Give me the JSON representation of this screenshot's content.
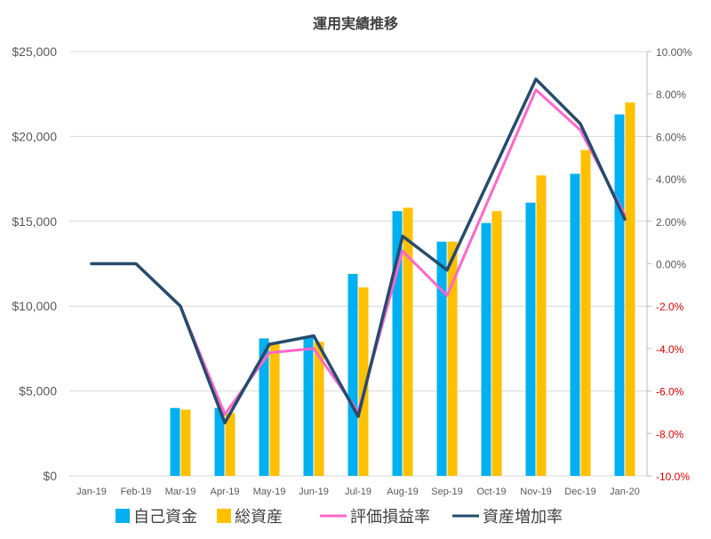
{
  "chart_data": {
    "type": "bar",
    "title": "運用実績推移",
    "categories": [
      "Jan-19",
      "Feb-19",
      "Mar-19",
      "Apr-19",
      "May-19",
      "Jun-19",
      "Jul-19",
      "Aug-19",
      "Sep-19",
      "Oct-19",
      "Nov-19",
      "Dec-19",
      "Jan-20"
    ],
    "left_axis": {
      "ylim": [
        0,
        25000
      ],
      "ticks": [
        0,
        5000,
        10000,
        15000,
        20000,
        25000
      ],
      "tick_labels": [
        "$0",
        "$5,000",
        "$10,000",
        "$15,000",
        "$20,000",
        "$25,000"
      ],
      "grid": true
    },
    "right_axis": {
      "ylim": [
        -10,
        10
      ],
      "ticks": [
        -10,
        -8,
        -6,
        -4,
        -2,
        0,
        2,
        4,
        6,
        8,
        10
      ],
      "tick_labels": [
        "-10.0%",
        "-8.0%",
        "-6.0%",
        "-4.0%",
        "-2.0%",
        "0.00%",
        "2.00%",
        "4.00%",
        "6.00%",
        "8.00%",
        "10.00%"
      ],
      "negative_color": "#e00000"
    },
    "series": [
      {
        "name": "自己資金",
        "kind": "bar",
        "axis": "left",
        "color": "#00b0f0",
        "values": [
          0,
          0,
          4000,
          4000,
          8100,
          8200,
          11900,
          15600,
          13800,
          14900,
          16100,
          17800,
          21300
        ]
      },
      {
        "name": "総資産",
        "kind": "bar",
        "axis": "left",
        "color": "#ffc000",
        "values": [
          0,
          0,
          3900,
          3700,
          7800,
          7900,
          11100,
          15800,
          13800,
          15600,
          17700,
          19200,
          22000
        ]
      },
      {
        "name": "評価損益率",
        "kind": "line",
        "axis": "right",
        "color": "#ff66cc",
        "values": [
          0,
          0,
          -2.0,
          -7.1,
          -4.2,
          -4.0,
          -7.0,
          0.6,
          -1.5,
          null,
          8.2,
          6.3,
          2.3
        ]
      },
      {
        "name": "資産増加率",
        "kind": "line",
        "axis": "right",
        "color": "#264b6e",
        "values": [
          0,
          0,
          -2.0,
          -7.5,
          -3.8,
          -3.4,
          -7.2,
          1.3,
          -0.3,
          null,
          8.7,
          6.6,
          2.1
        ]
      }
    ],
    "legend": {
      "position": "bottom"
    }
  }
}
